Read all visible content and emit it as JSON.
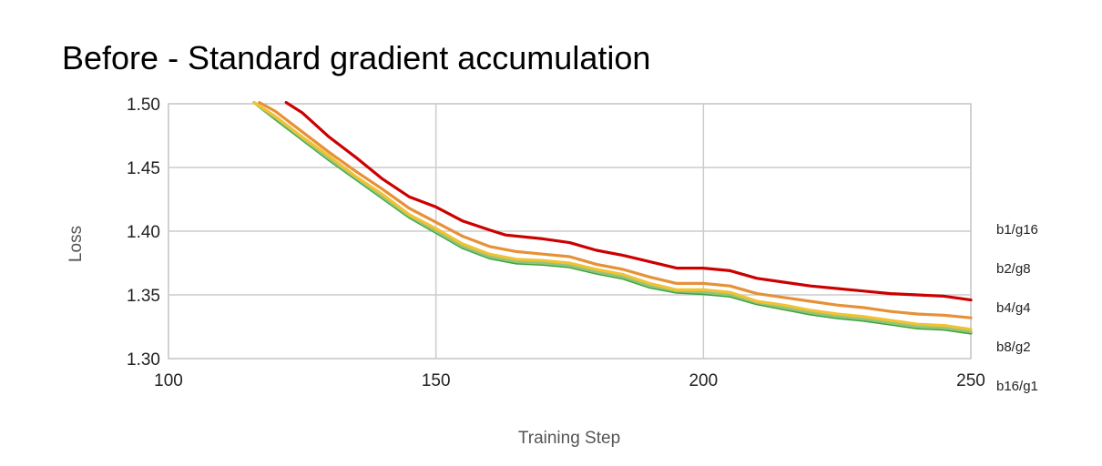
{
  "chart_data": {
    "type": "line",
    "title": "Before - Standard gradient accumulation",
    "xlabel": "Training Step",
    "ylabel": "Loss",
    "xlim": [
      100,
      250
    ],
    "ylim": [
      1.3,
      1.5
    ],
    "xticks": [
      "100",
      "150",
      "200",
      "250"
    ],
    "yticks": [
      "1.30",
      "1.35",
      "1.40",
      "1.45",
      "1.50"
    ],
    "grid": true,
    "legend_position": "right",
    "series": [
      {
        "name": "b1/g16",
        "color": "#cc0000",
        "points": [
          [
            122,
            1.501
          ],
          [
            125,
            1.493
          ],
          [
            130,
            1.474
          ],
          [
            135,
            1.458
          ],
          [
            140,
            1.441
          ],
          [
            145,
            1.427
          ],
          [
            150,
            1.419
          ],
          [
            155,
            1.408
          ],
          [
            160,
            1.401
          ],
          [
            163,
            1.397
          ],
          [
            170,
            1.394
          ],
          [
            175,
            1.391
          ],
          [
            180,
            1.385
          ],
          [
            185,
            1.381
          ],
          [
            190,
            1.376
          ],
          [
            195,
            1.371
          ],
          [
            200,
            1.371
          ],
          [
            205,
            1.369
          ],
          [
            210,
            1.363
          ],
          [
            215,
            1.36
          ],
          [
            220,
            1.357
          ],
          [
            225,
            1.355
          ],
          [
            230,
            1.353
          ],
          [
            235,
            1.351
          ],
          [
            240,
            1.35
          ],
          [
            245,
            1.349
          ],
          [
            250,
            1.346
          ]
        ]
      },
      {
        "name": "b2/g8",
        "color": "#e69138",
        "points": [
          [
            117,
            1.501
          ],
          [
            120,
            1.494
          ],
          [
            125,
            1.478
          ],
          [
            130,
            1.462
          ],
          [
            135,
            1.447
          ],
          [
            140,
            1.433
          ],
          [
            145,
            1.418
          ],
          [
            150,
            1.407
          ],
          [
            155,
            1.396
          ],
          [
            160,
            1.388
          ],
          [
            165,
            1.384
          ],
          [
            170,
            1.382
          ],
          [
            175,
            1.38
          ],
          [
            180,
            1.374
          ],
          [
            185,
            1.37
          ],
          [
            190,
            1.364
          ],
          [
            195,
            1.359
          ],
          [
            200,
            1.359
          ],
          [
            205,
            1.357
          ],
          [
            210,
            1.351
          ],
          [
            215,
            1.348
          ],
          [
            220,
            1.345
          ],
          [
            225,
            1.342
          ],
          [
            230,
            1.34
          ],
          [
            235,
            1.337
          ],
          [
            240,
            1.335
          ],
          [
            245,
            1.334
          ],
          [
            250,
            1.332
          ]
        ]
      },
      {
        "name": "b4/g4",
        "color": "#f1c232",
        "points": [
          [
            116,
            1.501
          ],
          [
            120,
            1.49
          ],
          [
            125,
            1.474
          ],
          [
            130,
            1.459
          ],
          [
            135,
            1.443
          ],
          [
            140,
            1.429
          ],
          [
            145,
            1.413
          ],
          [
            150,
            1.402
          ],
          [
            155,
            1.39
          ],
          [
            160,
            1.382
          ],
          [
            165,
            1.378
          ],
          [
            170,
            1.377
          ],
          [
            175,
            1.375
          ],
          [
            180,
            1.37
          ],
          [
            185,
            1.366
          ],
          [
            190,
            1.359
          ],
          [
            195,
            1.354
          ],
          [
            200,
            1.354
          ],
          [
            205,
            1.352
          ],
          [
            210,
            1.345
          ],
          [
            215,
            1.342
          ],
          [
            220,
            1.338
          ],
          [
            225,
            1.335
          ],
          [
            230,
            1.333
          ],
          [
            235,
            1.33
          ],
          [
            240,
            1.327
          ],
          [
            245,
            1.326
          ],
          [
            250,
            1.323
          ]
        ]
      },
      {
        "name": "b8/g2",
        "color": "#93c47d",
        "points": [
          [
            116,
            1.501
          ],
          [
            120,
            1.489
          ],
          [
            125,
            1.473
          ],
          [
            130,
            1.457
          ],
          [
            135,
            1.442
          ],
          [
            140,
            1.427
          ],
          [
            145,
            1.412
          ],
          [
            150,
            1.4
          ],
          [
            155,
            1.388
          ],
          [
            160,
            1.38
          ],
          [
            165,
            1.376
          ],
          [
            170,
            1.375
          ],
          [
            175,
            1.373
          ],
          [
            180,
            1.368
          ],
          [
            185,
            1.364
          ],
          [
            190,
            1.357
          ],
          [
            195,
            1.353
          ],
          [
            200,
            1.352
          ],
          [
            205,
            1.35
          ],
          [
            210,
            1.344
          ],
          [
            215,
            1.34
          ],
          [
            220,
            1.336
          ],
          [
            225,
            1.333
          ],
          [
            230,
            1.331
          ],
          [
            235,
            1.328
          ],
          [
            240,
            1.325
          ],
          [
            245,
            1.324
          ],
          [
            250,
            1.321
          ]
        ]
      },
      {
        "name": "b16/g1",
        "color": "#38a33b",
        "points": [
          [
            116,
            1.501
          ],
          [
            120,
            1.488
          ],
          [
            125,
            1.472
          ],
          [
            130,
            1.456
          ],
          [
            135,
            1.441
          ],
          [
            140,
            1.426
          ],
          [
            145,
            1.411
          ],
          [
            150,
            1.399
          ],
          [
            155,
            1.387
          ],
          [
            160,
            1.379
          ],
          [
            165,
            1.375
          ],
          [
            170,
            1.374
          ],
          [
            175,
            1.372
          ],
          [
            180,
            1.367
          ],
          [
            185,
            1.363
          ],
          [
            190,
            1.356
          ],
          [
            195,
            1.352
          ],
          [
            200,
            1.351
          ],
          [
            205,
            1.349
          ],
          [
            210,
            1.343
          ],
          [
            215,
            1.339
          ],
          [
            220,
            1.335
          ],
          [
            225,
            1.332
          ],
          [
            230,
            1.33
          ],
          [
            235,
            1.327
          ],
          [
            240,
            1.324
          ],
          [
            245,
            1.323
          ],
          [
            250,
            1.32
          ]
        ]
      }
    ]
  }
}
